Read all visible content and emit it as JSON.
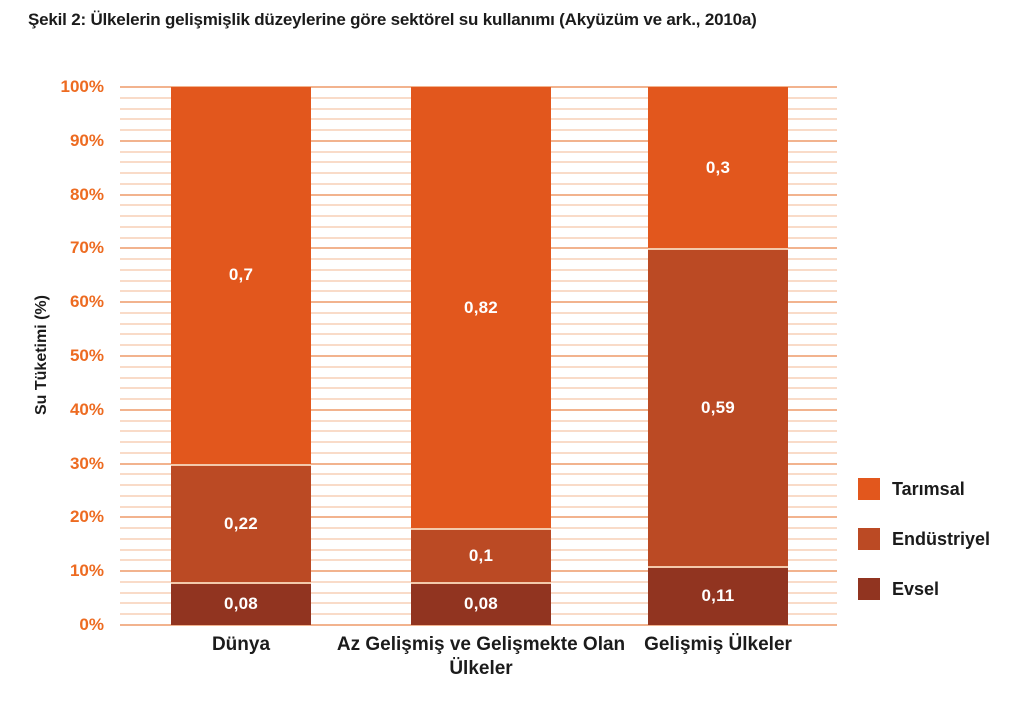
{
  "figure": {
    "title": "Şekil 2: Ülkelerin gelişmişlik düzeylerine göre sektörel su kullanımı (Akyüzüm ve ark., 2010a)"
  },
  "chart_data": {
    "type": "bar",
    "stacked": true,
    "ylabel": "Su Tüketimi (%)",
    "ylim": [
      0,
      100
    ],
    "ytick_step": 10,
    "minor_grid_step": 2,
    "ytick_suffix": "%",
    "grid": "on",
    "categories": [
      "Dünya",
      "Az Gelişmiş ve Gelişmekte Olan Ülkeler",
      "Gelişmiş Ülkeler"
    ],
    "series": [
      {
        "name": "Evsel",
        "color": "#913420",
        "values": [
          0.08,
          0.08,
          0.11
        ],
        "labels": [
          "0,08",
          "0,08",
          "0,11"
        ]
      },
      {
        "name": "Endüstriyel",
        "color": "#bb4a24",
        "values": [
          0.22,
          0.1,
          0.59
        ],
        "labels": [
          "0,22",
          "0,1",
          "0,59"
        ]
      },
      {
        "name": "Tarımsal",
        "color": "#e2571d",
        "values": [
          0.7,
          0.82,
          0.3
        ],
        "labels": [
          "0,7",
          "0,82",
          "0,3"
        ]
      }
    ],
    "legend": {
      "position": "right",
      "entries": [
        "Tarımsal",
        "Endüstriyel",
        "Evsel"
      ]
    },
    "colors": {
      "tick_label": "#ed6b21",
      "grid_minor": "#f9dbc8",
      "grid_major": "#f2b38e",
      "axis_text": "#1b1b1b",
      "value_label": "#ffffff"
    }
  }
}
